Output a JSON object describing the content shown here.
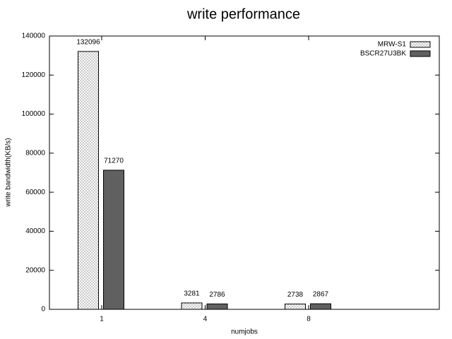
{
  "chart_data": {
    "type": "bar",
    "title": "write performance",
    "x_label": "numjobs",
    "y_label": "write bandwidth(KB/s)",
    "categories": [
      "1",
      "4",
      "8"
    ],
    "series": [
      {
        "name": "MRW-S1",
        "color": "#b0b0b0",
        "pattern": "crosshatch",
        "values": [
          132096,
          3281,
          2738
        ]
      },
      {
        "name": "BSCR27U3BK",
        "color": "#606060",
        "values": [
          71270,
          2786,
          2867
        ]
      }
    ],
    "ylim": [
      0,
      140000
    ],
    "yticks": [
      0,
      20000,
      40000,
      60000,
      80000,
      100000,
      120000,
      140000
    ],
    "legend": "top-right"
  }
}
